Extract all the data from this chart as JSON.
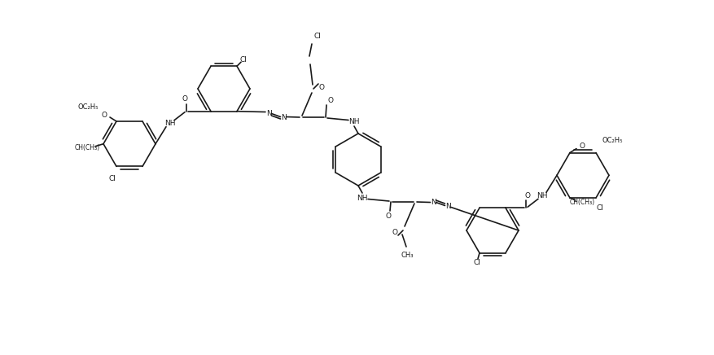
{
  "bg_color": "#ffffff",
  "line_color": "#1a1a1a",
  "line_width": 1.2,
  "figsize": [
    8.77,
    4.36
  ],
  "dpi": 100,
  "xlim": [
    0,
    87.7
  ],
  "ylim": [
    0,
    43.6
  ]
}
